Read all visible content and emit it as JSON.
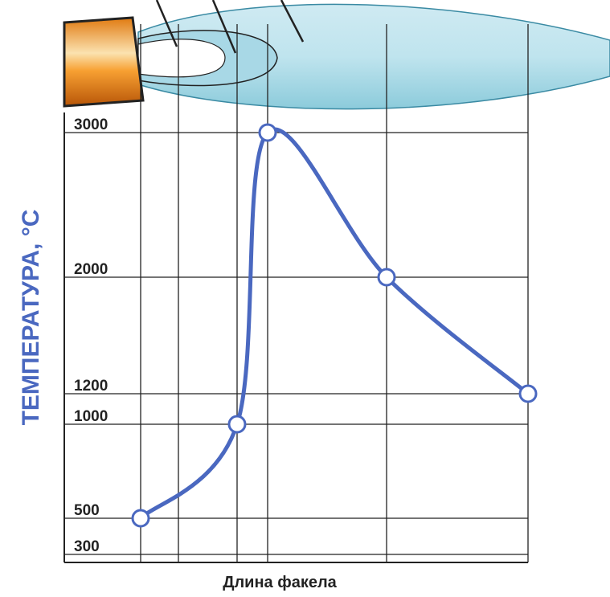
{
  "chart_data": {
    "type": "line",
    "x_label": "Длина факела",
    "y_label": "ТЕМПЕРАТУРА, °С",
    "categories": [
      null,
      null,
      null,
      null,
      null
    ],
    "series": [
      {
        "color": "#4a68c0",
        "values": [
          500,
          1000,
          3000,
          2000,
          1200
        ]
      }
    ],
    "ylim": [
      300,
      3000
    ],
    "yticks": [
      300,
      500,
      1000,
      1200,
      2000,
      3000
    ],
    "grid": true
  }
}
